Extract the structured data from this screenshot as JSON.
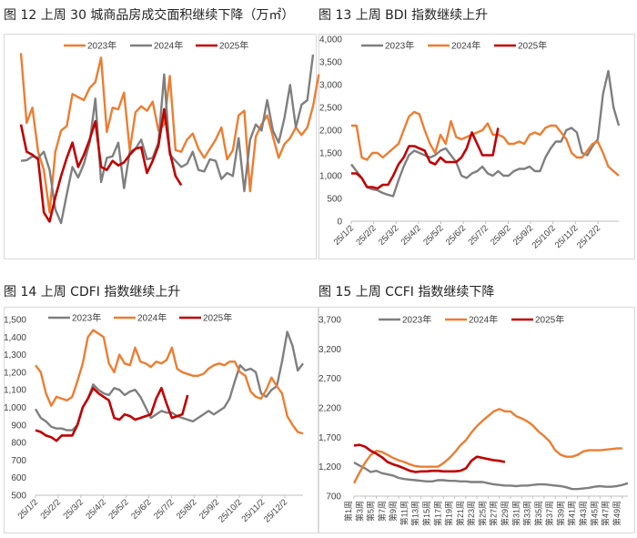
{
  "colors": {
    "orange": "#ED7D31",
    "gray": "#7F7F7F",
    "red": "#C00000"
  },
  "chart_data": [
    {
      "type": "line",
      "title": "图 12 上周 30 城商品房成交面积继续下降（万㎡）",
      "xlabel": "",
      "ylabel": "",
      "axes_visible": false,
      "grid": false,
      "legend": "top",
      "x_unit": "week",
      "ylim": [
        0,
        80
      ],
      "series": [
        {
          "name": "2023年",
          "color": "#ED7D31",
          "values": [
            62.5,
            39.5,
            44.5,
            30,
            24,
            10,
            30,
            37,
            38.5,
            49,
            48,
            47,
            51,
            53,
            61,
            36.5,
            44.5,
            44,
            49.5,
            30.5,
            43,
            45,
            43.5,
            46.5,
            37,
            39,
            55,
            30.5,
            30,
            34,
            36,
            31,
            28,
            31,
            34,
            38,
            27.5,
            30.5,
            42,
            43.5,
            17,
            35,
            39,
            42,
            35,
            28,
            32.5,
            34.5,
            38,
            35.5,
            38,
            45,
            55.5
          ]
        },
        {
          "name": "2024年",
          "color": "#7F7F7F",
          "values": [
            27,
            27.2,
            28.5,
            28,
            30,
            24,
            11,
            6.5,
            16,
            25,
            21.5,
            26,
            33,
            47.5,
            20,
            28,
            28.5,
            33,
            18,
            30,
            31,
            34,
            27.5,
            28,
            33,
            55.5,
            29,
            27,
            25,
            26,
            30,
            24,
            23.5,
            27.5,
            27,
            21,
            23,
            22,
            34.5,
            17,
            34,
            39,
            37,
            47,
            37,
            33,
            41,
            52,
            38,
            45.5,
            47,
            62
          ]
        },
        {
          "name": "2025年",
          "color": "#C00000",
          "values": [
            39,
            30,
            29,
            27.5,
            10,
            7,
            15,
            22,
            28,
            33,
            25,
            29,
            34,
            40,
            25,
            24,
            27,
            25.5,
            26.5,
            29,
            31,
            31.5,
            23,
            27,
            32,
            44,
            30,
            22,
            19
          ]
        }
      ]
    },
    {
      "type": "line",
      "title": "图 13 上周 BDI 指数继续上升",
      "xlabel": "",
      "ylabel": "",
      "grid": false,
      "legend": "top",
      "x_unit": "week",
      "x_tick_labels": [
        "25/1/2",
        "25/2/2",
        "25/3/2",
        "25/4/2",
        "25/5/2",
        "25/6/2",
        "25/7/2",
        "25/8/2",
        "25/9/2",
        "25/10/2",
        "25/11/2",
        "25/12/2"
      ],
      "ylim": [
        0,
        4000
      ],
      "y_tick_labels": [
        "0",
        "500",
        "1,000",
        "1,500",
        "2,000",
        "2,500",
        "3,000",
        "3,500",
        "4,000"
      ],
      "series": [
        {
          "name": "2023年",
          "color": "#7F7F7F",
          "values": [
            1250,
            1100,
            950,
            750,
            700,
            680,
            620,
            580,
            550,
            900,
            1200,
            1450,
            1550,
            1500,
            1450,
            1400,
            1450,
            1550,
            1600,
            1450,
            1300,
            1000,
            950,
            1050,
            1100,
            1200,
            1050,
            1000,
            1100,
            1000,
            1000,
            1100,
            1150,
            1150,
            1200,
            1100,
            1100,
            1400,
            1600,
            1750,
            1750,
            2000,
            2050,
            1950,
            1500,
            1450,
            1650,
            1800,
            2800,
            3300,
            2500,
            2100
          ]
        },
        {
          "name": "2024年",
          "color": "#ED7D31",
          "values": [
            2100,
            2100,
            1400,
            1350,
            1500,
            1500,
            1400,
            1500,
            1600,
            1700,
            2000,
            2300,
            2400,
            2350,
            2000,
            1700,
            1500,
            1900,
            1700,
            2200,
            1850,
            1800,
            1850,
            1900,
            1950,
            2000,
            2150,
            1900,
            1900,
            1850,
            1700,
            1700,
            1750,
            1700,
            1900,
            1950,
            1900,
            2050,
            2100,
            2100,
            1950,
            1800,
            1500,
            1400,
            1400,
            1550,
            1700,
            1750,
            1500,
            1200,
            1100,
            1000
          ]
        },
        {
          "name": "2025年",
          "color": "#C00000",
          "values": [
            1050,
            1050,
            950,
            750,
            750,
            720,
            800,
            800,
            1000,
            1250,
            1400,
            1650,
            1650,
            1600,
            1550,
            1300,
            1250,
            1400,
            1300,
            1300,
            1300,
            1400,
            1600,
            1950,
            1700,
            1450,
            1450,
            1450,
            2050
          ]
        }
      ]
    },
    {
      "type": "line",
      "title": "图 14 上周 CDFI 指数继续上升",
      "xlabel": "",
      "ylabel": "",
      "grid": false,
      "legend": "top",
      "x_unit": "week",
      "x_tick_labels": [
        "25/1/2",
        "25/2/2",
        "25/3/2",
        "25/4/2",
        "25/5/2",
        "25/6/2",
        "25/7/2",
        "25/8/2",
        "25/9/2",
        "25/10/2",
        "25/11/2",
        "25/12/2"
      ],
      "ylim": [
        500,
        1500
      ],
      "y_tick_labels": [
        "500",
        "600",
        "700",
        "800",
        "900",
        "1,000",
        "1,100",
        "1,200",
        "1,300",
        "1,400",
        "1,500"
      ],
      "series": [
        {
          "name": "2023年",
          "color": "#7F7F7F",
          "values": [
            990,
            940,
            920,
            890,
            880,
            880,
            870,
            870,
            900,
            1000,
            1050,
            1130,
            1100,
            1080,
            1070,
            1110,
            1100,
            1070,
            1090,
            1100,
            1060,
            1000,
            940,
            960,
            980,
            970,
            970,
            950,
            940,
            930,
            920,
            940,
            960,
            980,
            960,
            980,
            1000,
            1050,
            1150,
            1240,
            1210,
            1220,
            1200,
            1080,
            1060,
            1100,
            1120,
            1260,
            1430,
            1350,
            1210,
            1250
          ]
        },
        {
          "name": "2024年",
          "color": "#ED7D31",
          "values": [
            1240,
            1200,
            1080,
            1010,
            1060,
            1050,
            1040,
            1060,
            1150,
            1250,
            1400,
            1440,
            1420,
            1400,
            1250,
            1200,
            1300,
            1250,
            1240,
            1340,
            1260,
            1250,
            1230,
            1260,
            1250,
            1270,
            1340,
            1220,
            1200,
            1190,
            1180,
            1180,
            1190,
            1220,
            1240,
            1250,
            1240,
            1260,
            1260,
            1200,
            1180,
            1090,
            1060,
            1050,
            1100,
            1170,
            1120,
            1080,
            950,
            900,
            860,
            850
          ]
        },
        {
          "name": "2025年",
          "color": "#C00000",
          "values": [
            870,
            860,
            840,
            830,
            810,
            840,
            840,
            840,
            900,
            1000,
            1050,
            1110,
            1080,
            1060,
            1040,
            940,
            930,
            960,
            950,
            930,
            940,
            950,
            960,
            1050,
            1110,
            1020,
            940,
            950,
            960,
            1070
          ]
        }
      ]
    },
    {
      "type": "line",
      "title": "图 15 上周 CCFI 指数继续下降",
      "xlabel": "",
      "ylabel": "",
      "grid": false,
      "legend": "top",
      "x_categories_count": 50,
      "x_tick_labels": [
        "第1周",
        "第3周",
        "第5周",
        "第7周",
        "第9周",
        "第11周",
        "第13周",
        "第15周",
        "第17周",
        "第19周",
        "第21周",
        "第23周",
        "第25周",
        "第27周",
        "第29周",
        "第31周",
        "第33周",
        "第35周",
        "第37周",
        "第39周",
        "第41周",
        "第43周",
        "第45周",
        "第47周",
        "第49周"
      ],
      "ylim": [
        700,
        3700
      ],
      "y_tick_labels": [
        "700",
        "1,200",
        "1,700",
        "2,200",
        "2,700",
        "3,200",
        "3,700"
      ],
      "series": [
        {
          "name": "2023年",
          "color": "#7F7F7F",
          "values": [
            1270,
            1220,
            1170,
            1110,
            1130,
            1090,
            1070,
            1050,
            1010,
            990,
            980,
            970,
            960,
            950,
            950,
            970,
            970,
            960,
            960,
            950,
            950,
            940,
            940,
            940,
            920,
            900,
            890,
            880,
            880,
            870,
            880,
            880,
            890,
            900,
            900,
            890,
            880,
            870,
            850,
            820,
            820,
            830,
            840,
            860,
            870,
            860,
            860,
            870,
            890,
            920
          ]
        },
        {
          "name": "2024年",
          "color": "#ED7D31",
          "values": [
            920,
            1100,
            1270,
            1400,
            1470,
            1450,
            1400,
            1350,
            1310,
            1280,
            1240,
            1210,
            1200,
            1200,
            1200,
            1200,
            1260,
            1340,
            1440,
            1560,
            1650,
            1780,
            1890,
            1980,
            2060,
            2140,
            2180,
            2140,
            2140,
            2060,
            2020,
            1970,
            1900,
            1800,
            1720,
            1630,
            1480,
            1400,
            1370,
            1370,
            1400,
            1460,
            1480,
            1480,
            1480,
            1490,
            1500,
            1510,
            1510
          ]
        },
        {
          "name": "2025年",
          "color": "#C00000",
          "values": [
            1560,
            1570,
            1540,
            1470,
            1420,
            1360,
            1280,
            1240,
            1210,
            1170,
            1130,
            1110,
            1120,
            1120,
            1130,
            1130,
            1120,
            1120,
            1120,
            1130,
            1170,
            1300,
            1370,
            1350,
            1330,
            1310,
            1300,
            1280
          ]
        }
      ]
    }
  ]
}
